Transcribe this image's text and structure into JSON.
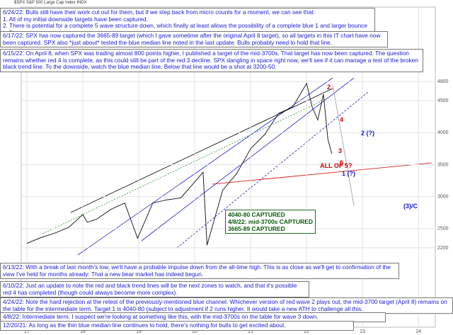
{
  "header": {
    "symbol": "$SPX S&P 500 Large Cap Index INDX"
  },
  "chart_data": {
    "type": "line",
    "x": [
      2017.0,
      2017.25,
      2017.5,
      2017.75,
      2018.0,
      2018.08,
      2018.25,
      2018.5,
      2018.75,
      2018.98,
      2019.25,
      2019.5,
      2019.75,
      2020.0,
      2020.15,
      2020.22,
      2020.5,
      2020.75,
      2021.0,
      2021.25,
      2021.5,
      2021.75,
      2022.0,
      2022.1,
      2022.2,
      2022.3,
      2022.38,
      2022.45
    ],
    "series": [
      {
        "name": "SPX",
        "color": "#222222",
        "values": [
          2270,
          2360,
          2430,
          2520,
          2720,
          2600,
          2650,
          2800,
          2900,
          2350,
          2900,
          2950,
          2980,
          3230,
          3380,
          2240,
          3100,
          3360,
          3750,
          3970,
          4300,
          4400,
          4770,
          4400,
          4200,
          4600,
          3900,
          3670
        ]
      }
    ],
    "xlim": [
      2016.9,
      2024.3
    ],
    "xticks": [
      {
        "value": 2017,
        "label": "17"
      },
      {
        "value": 2018,
        "label": "18"
      },
      {
        "value": 2019,
        "label": "19"
      },
      {
        "value": 2020,
        "label": "20"
      },
      {
        "value": 2021,
        "label": "21"
      },
      {
        "value": 2022,
        "label": "22"
      },
      {
        "value": 2023,
        "label": "23"
      },
      {
        "value": 2024,
        "label": "24"
      }
    ],
    "ylim": [
      2000,
      5000
    ],
    "yticks": [
      2200,
      2500,
      3000,
      3500,
      4000,
      4500,
      4800
    ],
    "grid": true,
    "labels": [
      {
        "text": "2",
        "color": "#d00000"
      },
      {
        "text": "4",
        "color": "#d00000"
      },
      {
        "text": "3",
        "color": "#d00000"
      },
      {
        "text": "5",
        "color": "#d00000"
      },
      {
        "text": "2 (?)",
        "color": "#1a1ad6"
      },
      {
        "text": "1 (?)",
        "color": "#1a1ad6"
      },
      {
        "text": "ALL OF 5?",
        "color": "#d00000"
      },
      {
        "text": "(3)/C",
        "color": "#1a1ad6"
      }
    ],
    "captured": [
      "4040-80 CAPTURED",
      "4/8/22: mid-3700s CAPTURED",
      "3665-89 CAPTURED"
    ]
  },
  "notes": [
    {
      "lines": [
        "6/24/22:  Bulls still have their work cut out for them, but if we step back from micro counts for a moment, we can see that:",
        "1. All of my initial downside targets have been captured.",
        "2. There is potential for a complete 5 wave structure down, which finally at least allows the possibility of a complete blue 1 and larger bounce in 2.",
        "Next upside resistance test for bulls is the confluence near ~3900, if they clear, it would open up a shot at red and higher."
      ]
    },
    {
      "lines": [
        "6/17/22:  SPX has now captured the 3665-89 target (which I gave sometime after the original April 8 target), so all targets in this IT chart have now been captured.  SPX also *just about* tested the blue median line noted in the last update.  Bulls probably need to hold that line."
      ]
    },
    {
      "lines": [
        "6/15/22:  On April 8, when SPX was trading almost 800 points higher, I published a target of the mid-3700s.  That target has now been captured.  The question remains whether red 4 is complete, as this could still be part of the red 3 decline.  SPX dangling in space right now, we'll see if it can manage a test of the broken black trend line.  To the downside, watch the blue median line.  Below that line would be a shot at 3200-50."
      ]
    },
    {
      "lines": [
        "6/13/22:  With a break of last month's low, we'll have a probable impulse down from the all-time high.  This is as close as we'll get to confirmation of the view I've held for months already:  That a new bear market has indeed begun."
      ]
    },
    {
      "lines": [
        "6/10/22:  Just an update to note the red and black trend lines will be the next zones to watch, and that it's possible red 4 has completed (though could always become more complex)."
      ]
    },
    {
      "lines": [
        "4/24/22:  Note the hard rejection at the retest of the previously-mentioned blue channel.  Whichever version of red wave 2 plays out, the mid-3700 target (April 8) remains on the table for the intermediate term.  Target 1 is 4040-80 (subject to adjustment if 2 runs higher.  It would take a new ATH to challenge all this."
      ]
    },
    {
      "lines": [
        "4/8/22:  Intermediate term, I suspect we're looking at something like this, with the mid-3700s on the table for wave 3 down."
      ]
    },
    {
      "lines": [
        "12/20/21:  As long as the thin blue median line continues to hold, there's nothing for bulls to get excited about."
      ]
    }
  ]
}
